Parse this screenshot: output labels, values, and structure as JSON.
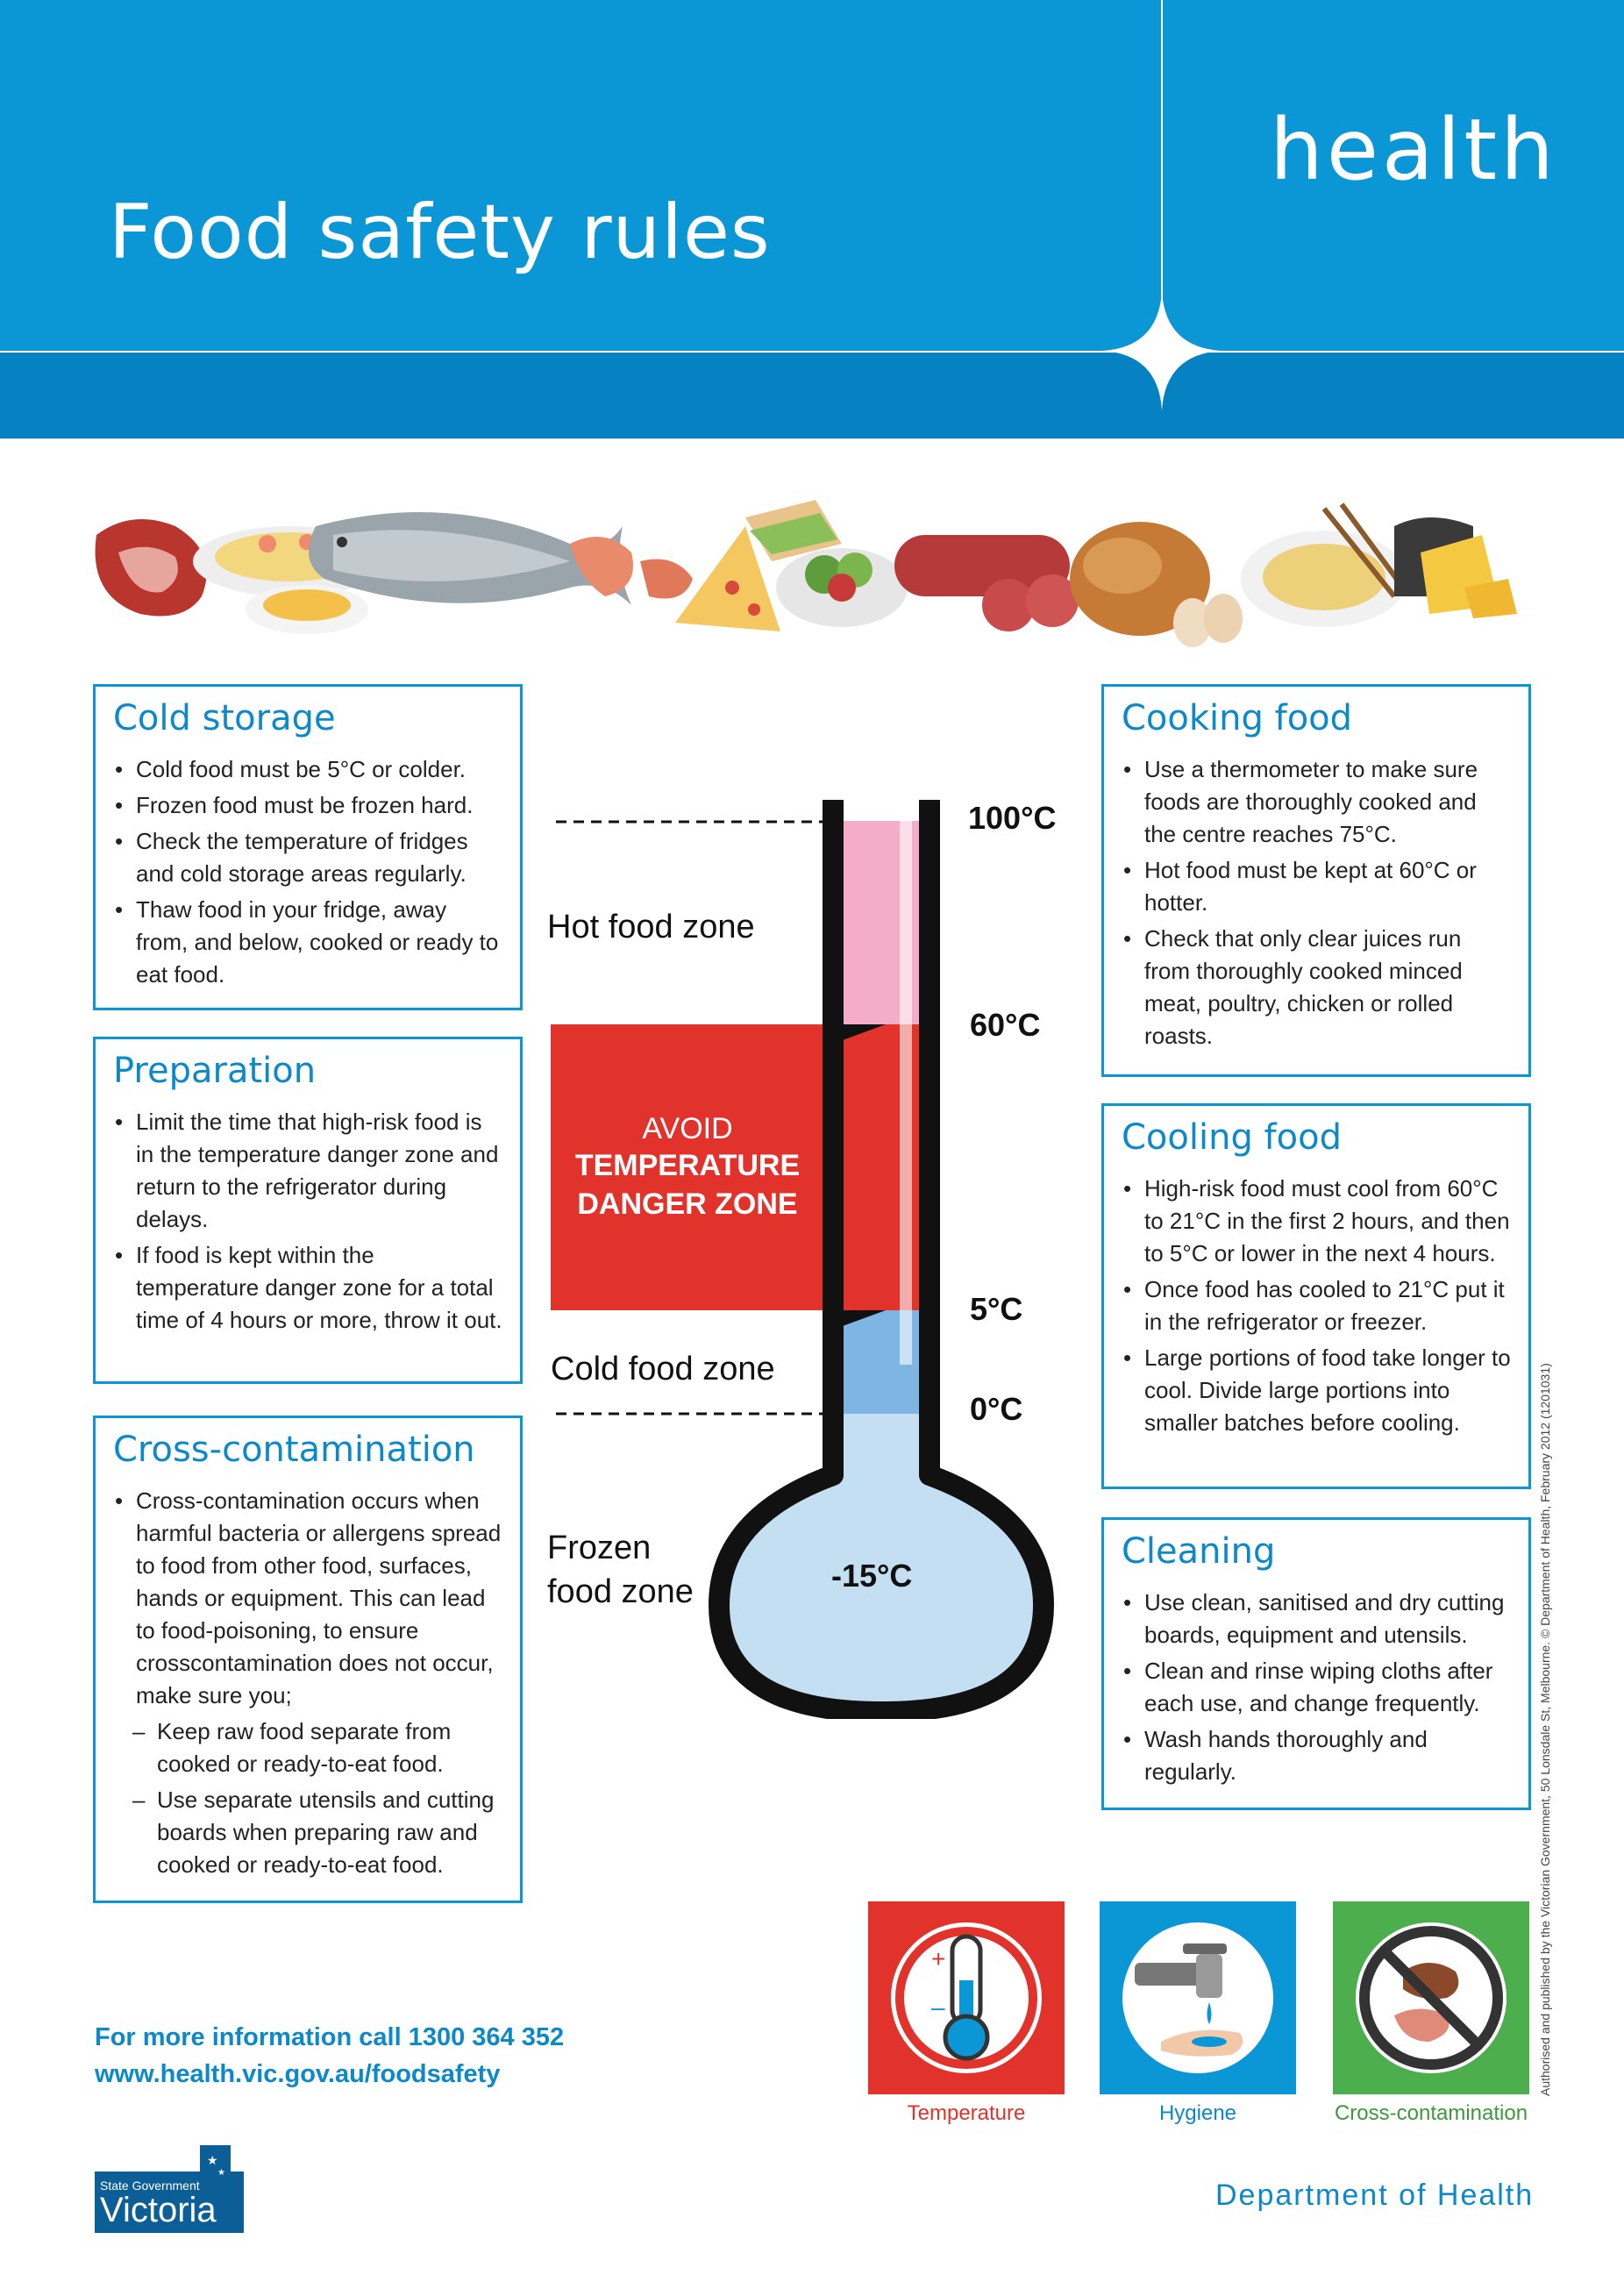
{
  "header": {
    "title": "Food safety rules",
    "brand": "health"
  },
  "food_strip": {
    "icon": "food-illustration-strip"
  },
  "boxes": {
    "cold_storage": {
      "title": "Cold storage",
      "items": [
        "Cold food must be 5°C or colder.",
        "Frozen food must be frozen hard.",
        "Check the temperature of fridges and cold storage areas regularly.",
        "Thaw food in your fridge, away from, and below, cooked or ready to eat food."
      ]
    },
    "preparation": {
      "title": "Preparation",
      "items": [
        "Limit the time that high-risk food is in the temperature danger zone and return to the refrigerator during delays.",
        "If food is kept within the temperature danger zone for a total time of 4 hours or more, throw it out."
      ]
    },
    "cross_contamination": {
      "title": "Cross-contamination",
      "items": [
        "Cross-contamination occurs when harmful bacteria or allergens spread to food from other food, surfaces, hands or equipment. This can lead to food-poisoning, to ensure crosscontamination does not occur, make sure you;"
      ],
      "sub_items": [
        "Keep raw food separate from cooked or ready-to-eat food.",
        "Use separate utensils and cutting boards when preparing raw and cooked or ready-to-eat food."
      ]
    },
    "cooking_food": {
      "title": "Cooking food",
      "items": [
        "Use a thermometer to make sure foods are thoroughly cooked and the centre reaches 75°C.",
        "Hot food must be kept at 60°C or hotter.",
        "Check that only clear juices run from thoroughly cooked minced meat, poultry, chicken or rolled roasts."
      ]
    },
    "cooling_food": {
      "title": "Cooling food",
      "items": [
        "High-risk food must cool from 60°C to 21°C in the first 2 hours, and then to 5°C or lower in the next 4 hours.",
        "Once food has cooled to 21°C put it in the refrigerator or freezer.",
        "Large portions of food take longer to cool. Divide large portions into smaller batches before cooling."
      ]
    },
    "cleaning": {
      "title": "Cleaning",
      "items": [
        "Use clean, sanitised and dry cutting boards, equipment and utensils.",
        "Clean and rinse wiping cloths after each use, and change frequently.",
        "Wash hands thoroughly and regularly."
      ]
    }
  },
  "thermometer": {
    "zones": {
      "hot": "Hot food zone",
      "cold": "Cold food zone",
      "frozen_1": "Frozen",
      "frozen_2": "food zone"
    },
    "danger": {
      "line1": "AVOID",
      "line2": "TEMPERATURE",
      "line3": "DANGER ZONE"
    },
    "temps": {
      "t100": "100°C",
      "t60": "60°C",
      "t5": "5°C",
      "t0": "0°C",
      "tm15": "-15°C"
    },
    "colors": {
      "hot": "#f3adc6",
      "danger": "#e2322c",
      "cold": "#7fb5e3",
      "frozen": "#c5dff2",
      "outline": "#111111"
    }
  },
  "footer": {
    "contact_line1": "For more information call 1300 364 352",
    "contact_line2": "www.health.vic.gov.au/foodsafety",
    "icons": [
      {
        "name": "temperature-icon",
        "caption": "Temperature",
        "color": "#e2322c"
      },
      {
        "name": "hygiene-icon",
        "caption": "Hygiene",
        "color": "#0b97d6"
      },
      {
        "name": "cross-contamination-icon",
        "caption": "Cross-contamination",
        "color": "#4cae4c"
      }
    ],
    "department": "Department of Health",
    "logo_top": "State Government",
    "logo_main": "Victoria",
    "side_note": "Authorised and published by the Victorian Government, 50 Lonsdale St, Melbourne. © Department of Health, February 2012 (1201031)"
  }
}
